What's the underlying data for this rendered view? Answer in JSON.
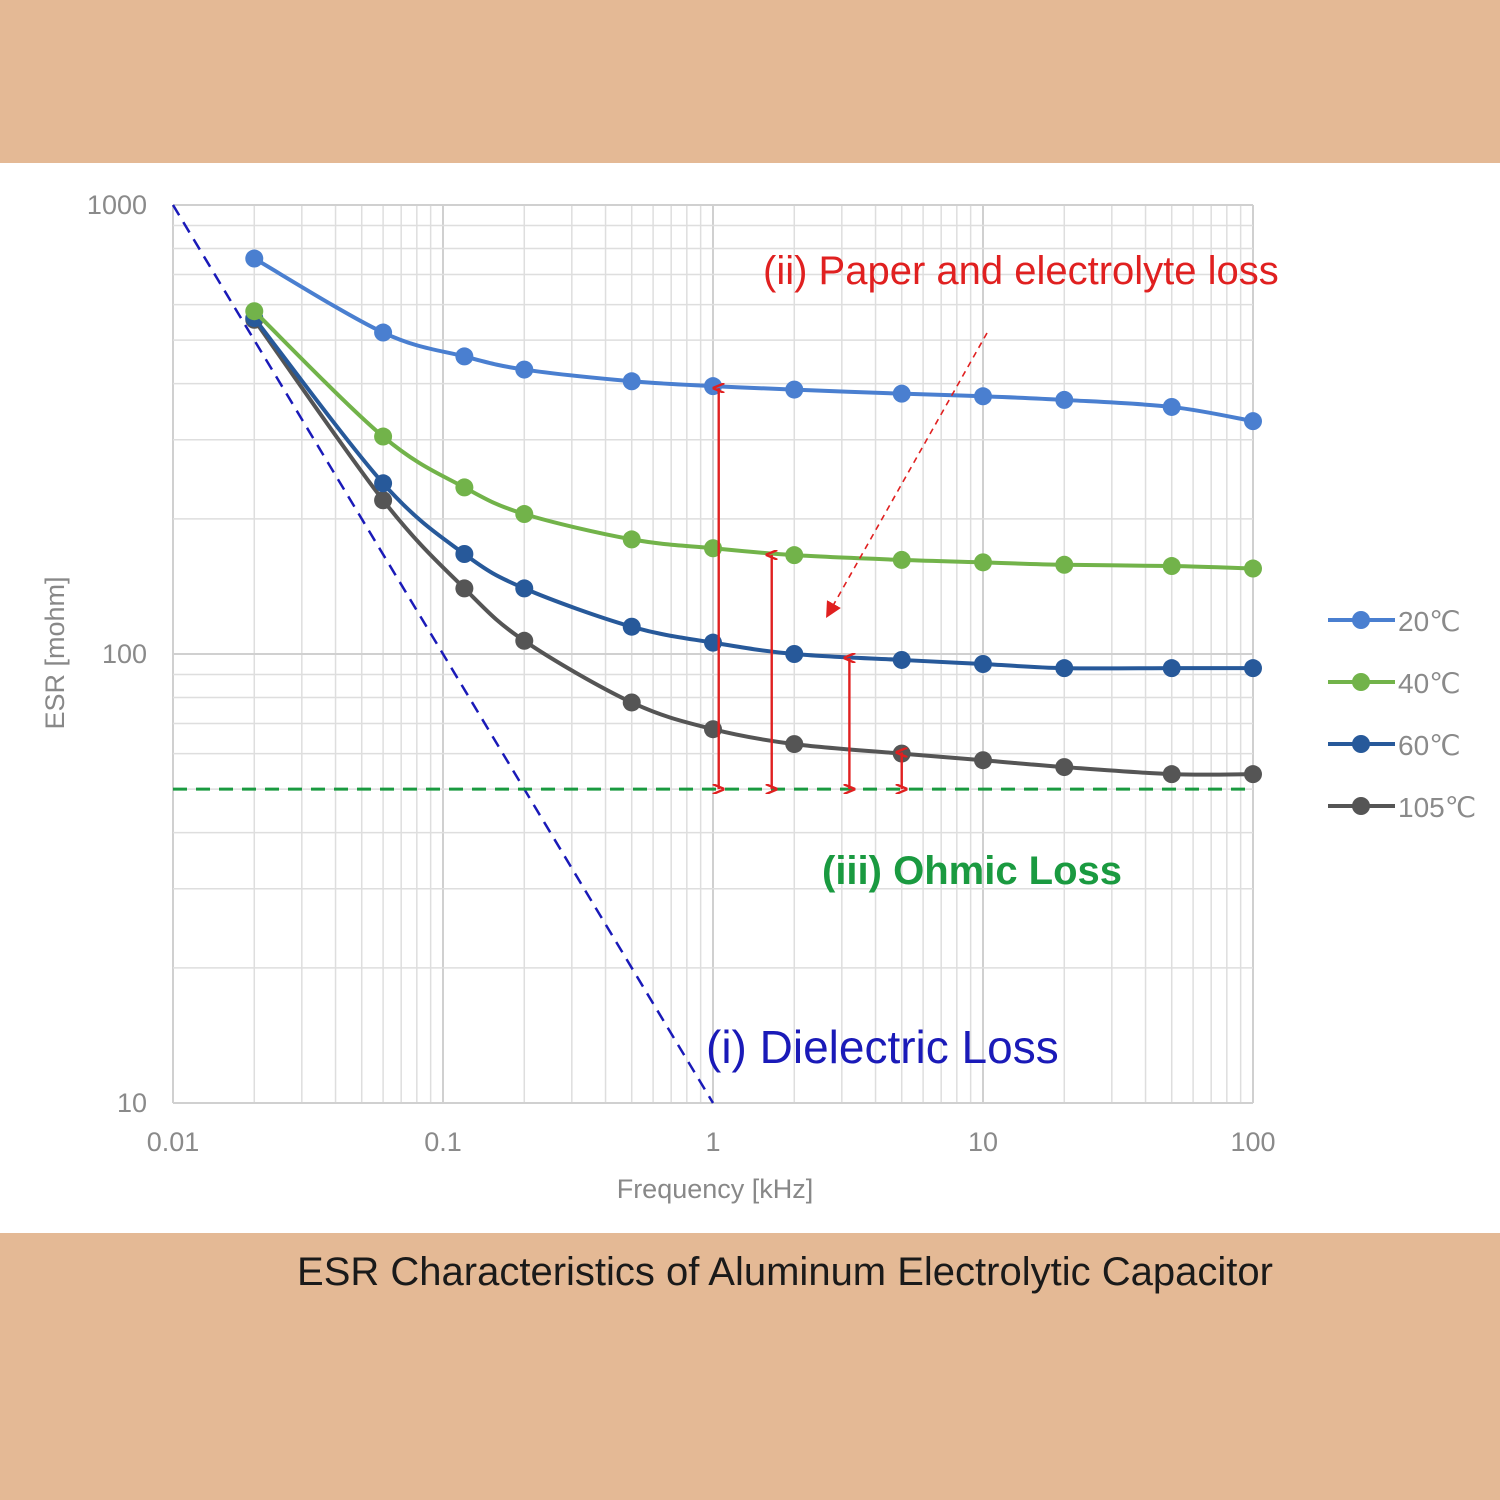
{
  "caption": "ESR Characteristics of Aluminum Electrolytic Capacitor",
  "chart_data": {
    "type": "line",
    "title": "",
    "xlabel": "Frequency [kHz]",
    "ylabel": "ESR [mohm]",
    "x_scale": "log",
    "y_scale": "log",
    "xlim": [
      0.01,
      100
    ],
    "ylim": [
      10,
      1000
    ],
    "x_ticks": [
      {
        "value": 0.01,
        "label": "0.01"
      },
      {
        "value": 0.1,
        "label": "0.1"
      },
      {
        "value": 1,
        "label": "1"
      },
      {
        "value": 10,
        "label": "10"
      },
      {
        "value": 100,
        "label": "100"
      }
    ],
    "y_ticks": [
      {
        "value": 10,
        "label": "10"
      },
      {
        "value": 100,
        "label": "100"
      },
      {
        "value": 1000,
        "label": "1000"
      }
    ],
    "grid": true,
    "legend_position": "right",
    "x": [
      0.02,
      0.06,
      0.12,
      0.2,
      0.5,
      1,
      2,
      5,
      10,
      20,
      50,
      100
    ],
    "series": [
      {
        "name": "20℃",
        "color": "#4a7fd0",
        "values": [
          760,
          520,
          460,
          430,
          405,
          395,
          388,
          380,
          375,
          368,
          355,
          330
        ]
      },
      {
        "name": "40℃",
        "color": "#72b34a",
        "values": [
          580,
          305,
          235,
          205,
          180,
          172,
          166,
          162,
          160,
          158,
          157,
          155
        ]
      },
      {
        "name": "60℃",
        "color": "#27599a",
        "values": [
          560,
          240,
          167,
          140,
          115,
          106,
          100,
          97,
          95,
          93,
          93,
          93
        ]
      },
      {
        "name": "105℃",
        "color": "#555555",
        "values": [
          555,
          220,
          140,
          107,
          78,
          68,
          63,
          60,
          58,
          56,
          54,
          54
        ]
      }
    ],
    "annotations": [
      {
        "id": "dielectric",
        "text": "(i) Dielectric Loss",
        "color": "#1a1ab8"
      },
      {
        "id": "paper",
        "text": "(ii) Paper and electrolyte loss",
        "color": "#e02020"
      },
      {
        "id": "ohmic",
        "text": "(iii) Ohmic Loss",
        "color": "#1a9a40"
      }
    ],
    "dielectric_line": {
      "from": [
        0.01,
        1000
      ],
      "to": [
        1,
        10
      ],
      "color": "#1a1ab8"
    },
    "ohmic_line": {
      "y": 50,
      "xlim": [
        0.01,
        100
      ],
      "color": "#1a9a40"
    },
    "loss_arrows": [
      {
        "x": 1.05,
        "y_top": 395,
        "y_bottom": 50
      },
      {
        "x": 1.65,
        "y_top": 168,
        "y_bottom": 50
      },
      {
        "x": 3.2,
        "y_top": 99,
        "y_bottom": 50
      },
      {
        "x": 5.0,
        "y_top": 61,
        "y_bottom": 50
      }
    ]
  }
}
